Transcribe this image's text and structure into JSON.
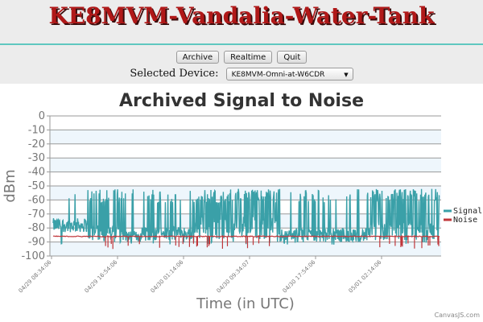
{
  "header": {
    "title": "KE8MVM-Vandalia-Water-Tank"
  },
  "toolbar": {
    "archive_label": "Archive",
    "realtime_label": "Realtime",
    "quit_label": "Quit"
  },
  "device": {
    "label": "Selected Device:",
    "selected": "KE8MVM-Omni-at-W6CDR"
  },
  "colors": {
    "signal": "#3aa0a8",
    "noise": "#c0363a",
    "title": "#b01818",
    "accent_rule": "#5fc7c0",
    "band": "#eef6fc"
  },
  "chart_data": {
    "type": "line",
    "title": "Archived Signal to Noise",
    "xlabel": "Time (in UTC)",
    "ylabel": "dBm",
    "ylim": [
      -100,
      0
    ],
    "yticks": [
      "0",
      "-10",
      "-20",
      "-30",
      "-40",
      "-50",
      "-60",
      "-70",
      "-80",
      "-90",
      "-100"
    ],
    "xticks": [
      "04/29 08:34:06",
      "04/29 16:54:06",
      "04/30 01:14:06",
      "04/30 09:34:07",
      "04/30 17:54:06",
      "05/01 02:14:06"
    ],
    "grid": true,
    "legend": "right",
    "series": [
      {
        "name": "Signal",
        "segments": [
          {
            "from": 0.0,
            "to": 0.09,
            "base": -78,
            "spread": 5,
            "spikes": 0.04
          },
          {
            "from": 0.09,
            "to": 0.18,
            "base": -84,
            "spread": 6,
            "spikes": 0.25
          },
          {
            "from": 0.18,
            "to": 0.23,
            "base": -86,
            "spread": 4,
            "spikes": 0.18
          },
          {
            "from": 0.23,
            "to": 0.36,
            "base": -84,
            "spread": 5,
            "spikes": 0.2
          },
          {
            "from": 0.36,
            "to": 0.58,
            "base": -80,
            "spread": 8,
            "spikes": 0.45
          },
          {
            "from": 0.58,
            "to": 0.82,
            "base": -85,
            "spread": 5,
            "spikes": 0.12
          },
          {
            "from": 0.82,
            "to": 1.0,
            "base": -82,
            "spread": 7,
            "spikes": 0.4
          }
        ],
        "spike_level": -57
      },
      {
        "name": "Noise",
        "level": -86,
        "dips_to": -95
      }
    ]
  },
  "credit": "CanvasJS.com"
}
